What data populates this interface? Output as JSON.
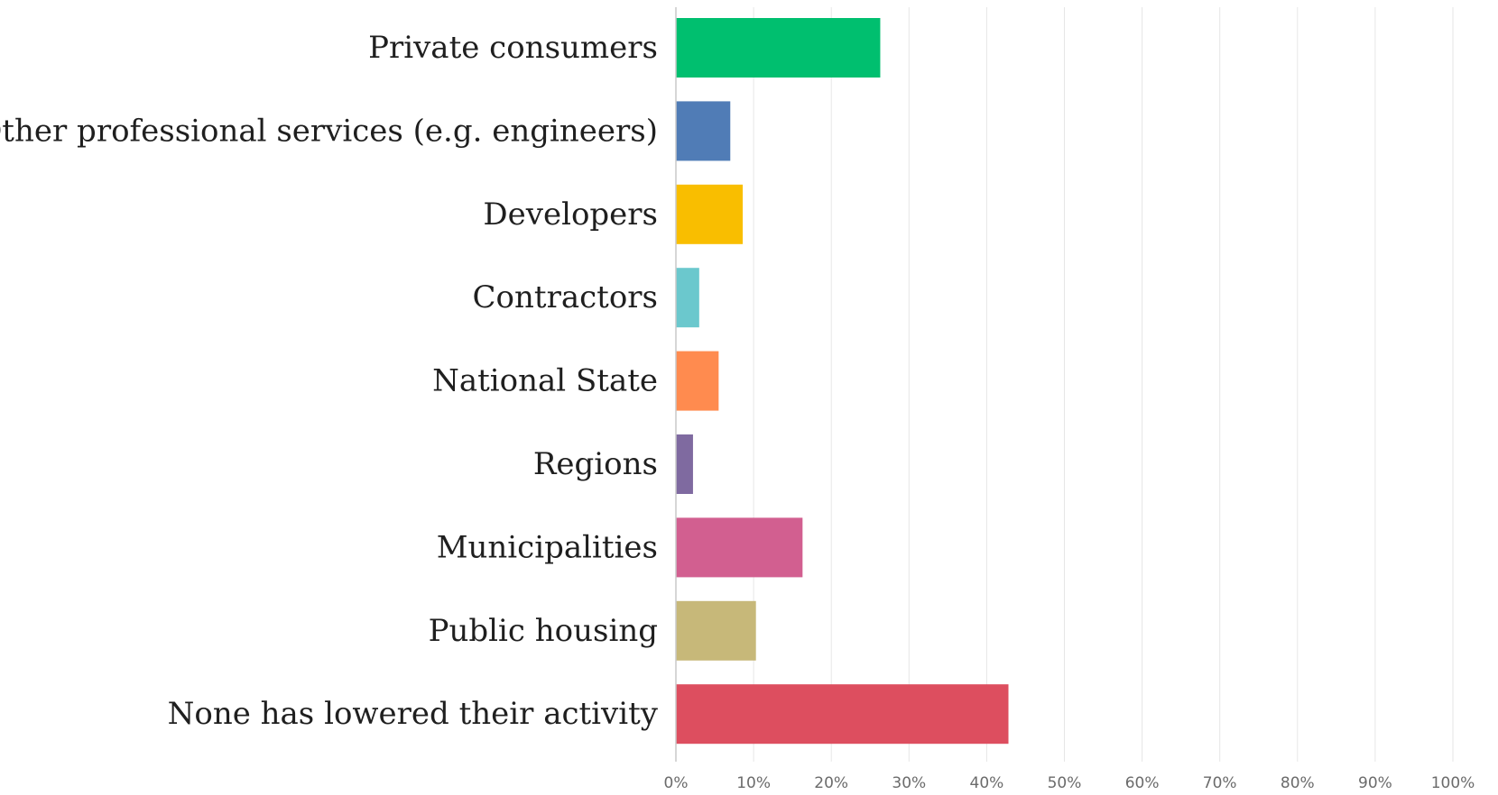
{
  "chart_data": {
    "type": "bar",
    "orientation": "horizontal",
    "categories": [
      "Private consumers",
      "Other professional services (e.g. engineers)",
      "Developers",
      "Contractors",
      "National State",
      "Regions",
      "Municipalities",
      "Public housing",
      "None has lowered their activity"
    ],
    "values": [
      26.3,
      7.0,
      8.6,
      3.0,
      5.5,
      2.2,
      16.3,
      10.3,
      42.8
    ],
    "colors": [
      "#00bf6f",
      "#507cb6",
      "#f9be00",
      "#6bc8cd",
      "#ff8b4f",
      "#7f6aa0",
      "#d25f90",
      "#c7b879",
      "#dd4e5f"
    ],
    "x_ticks": [
      "0%",
      "10%",
      "20%",
      "30%",
      "40%",
      "50%",
      "60%",
      "70%",
      "80%",
      "90%",
      "100%"
    ],
    "xlim": [
      0,
      100
    ],
    "unit": "%",
    "grid": "vertical",
    "legend": "none"
  }
}
